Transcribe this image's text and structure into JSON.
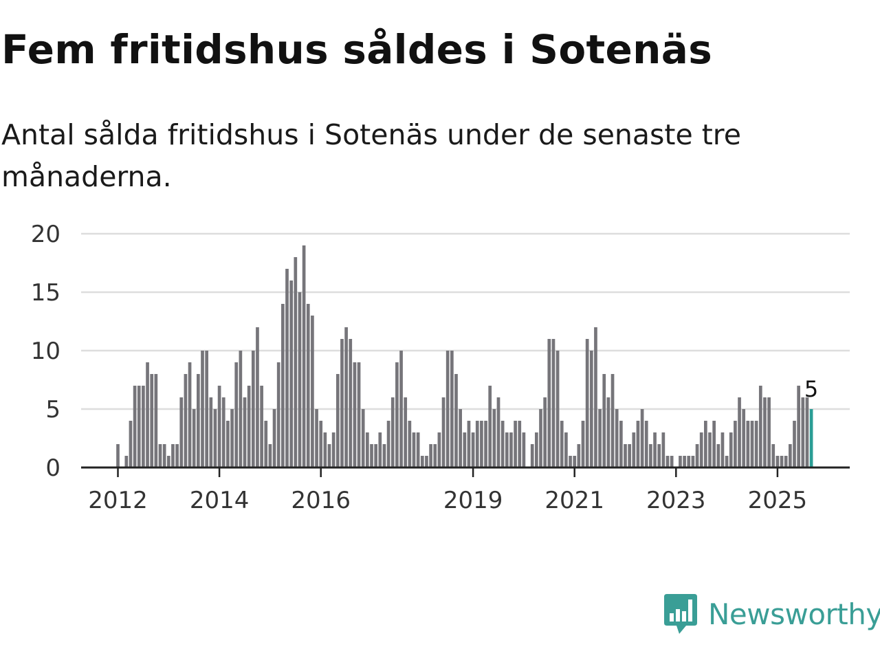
{
  "header": {
    "title": "Fem fritidshus såldes i Sotenäs",
    "subtitle": "Antal sålda fritidshus i Sotenäs under de senaste tre månaderna."
  },
  "brand": {
    "name": "Newsworthy",
    "icon": "newsworthy-logo-icon",
    "color": "#3a9e96"
  },
  "colors": {
    "bar": "#76757a",
    "highlight": "#2a9d95",
    "grid": "#dddddd",
    "axis": "#222222"
  },
  "chart_data": {
    "type": "bar",
    "title": "Fem fritidshus såldes i Sotenäs",
    "subtitle": "Antal sålda fritidshus i Sotenäs under de senaste tre månaderna.",
    "xlabel": "",
    "ylabel": "",
    "x_start": "2012-01",
    "x_end": "2025-09",
    "ylim": [
      0,
      20
    ],
    "y_ticks": [
      0,
      5,
      10,
      15,
      20
    ],
    "x_ticks": [
      "2012",
      "2014",
      "2016",
      "2019",
      "2021",
      "2023",
      "2025"
    ],
    "grid": true,
    "legend": "none",
    "highlight_last": true,
    "annotations": [
      {
        "label": "5",
        "target": "last-bar"
      }
    ],
    "values": [
      2,
      0,
      1,
      4,
      7,
      7,
      7,
      9,
      8,
      8,
      2,
      2,
      1,
      2,
      2,
      6,
      8,
      9,
      5,
      8,
      10,
      10,
      6,
      5,
      7,
      6,
      4,
      5,
      9,
      10,
      6,
      7,
      10,
      12,
      7,
      4,
      2,
      5,
      9,
      14,
      17,
      16,
      18,
      15,
      19,
      14,
      13,
      5,
      4,
      3,
      2,
      3,
      8,
      11,
      12,
      11,
      9,
      9,
      5,
      3,
      2,
      2,
      3,
      2,
      4,
      6,
      9,
      10,
      6,
      4,
      3,
      3,
      1,
      1,
      2,
      2,
      3,
      6,
      10,
      10,
      8,
      5,
      3,
      4,
      3,
      4,
      4,
      4,
      7,
      5,
      6,
      4,
      3,
      3,
      4,
      4,
      3,
      0,
      2,
      3,
      5,
      6,
      11,
      11,
      10,
      4,
      3,
      1,
      1,
      2,
      4,
      11,
      10,
      12,
      5,
      8,
      6,
      8,
      5,
      4,
      2,
      2,
      3,
      4,
      5,
      4,
      2,
      3,
      2,
      3,
      1,
      1,
      0,
      1,
      1,
      1,
      1,
      2,
      3,
      4,
      3,
      4,
      2,
      3,
      1,
      3,
      4,
      6,
      5,
      4,
      4,
      4,
      7,
      6,
      6,
      2,
      1,
      1,
      1,
      2,
      4,
      7,
      6,
      6,
      5
    ]
  }
}
